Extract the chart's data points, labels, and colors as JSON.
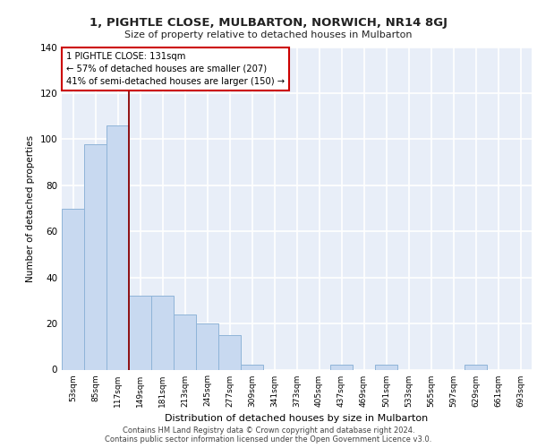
{
  "title": "1, PIGHTLE CLOSE, MULBARTON, NORWICH, NR14 8GJ",
  "subtitle": "Size of property relative to detached houses in Mulbarton",
  "xlabel": "Distribution of detached houses by size in Mulbarton",
  "ylabel": "Number of detached properties",
  "bar_color": "#c8d9f0",
  "bar_edge_color": "#8fb4d8",
  "bg_color": "#e8eef8",
  "grid_color": "#ffffff",
  "bins": [
    "53sqm",
    "85sqm",
    "117sqm",
    "149sqm",
    "181sqm",
    "213sqm",
    "245sqm",
    "277sqm",
    "309sqm",
    "341sqm",
    "373sqm",
    "405sqm",
    "437sqm",
    "469sqm",
    "501sqm",
    "533sqm",
    "565sqm",
    "597sqm",
    "629sqm",
    "661sqm",
    "693sqm"
  ],
  "values": [
    70,
    98,
    106,
    32,
    32,
    24,
    20,
    15,
    2,
    0,
    0,
    0,
    2,
    0,
    2,
    0,
    0,
    0,
    2,
    0,
    0
  ],
  "ylim": [
    0,
    140
  ],
  "yticks": [
    0,
    20,
    40,
    60,
    80,
    100,
    120,
    140
  ],
  "property_line_x": 2.5,
  "annotation_text": "1 PIGHTLE CLOSE: 131sqm\n← 57% of detached houses are smaller (207)\n41% of semi-detached houses are larger (150) →",
  "annotation_box_color": "#ffffff",
  "annotation_box_edge": "#cc0000",
  "property_line_color": "#8b0000",
  "footer_line1": "Contains HM Land Registry data © Crown copyright and database right 2024.",
  "footer_line2": "Contains public sector information licensed under the Open Government Licence v3.0."
}
